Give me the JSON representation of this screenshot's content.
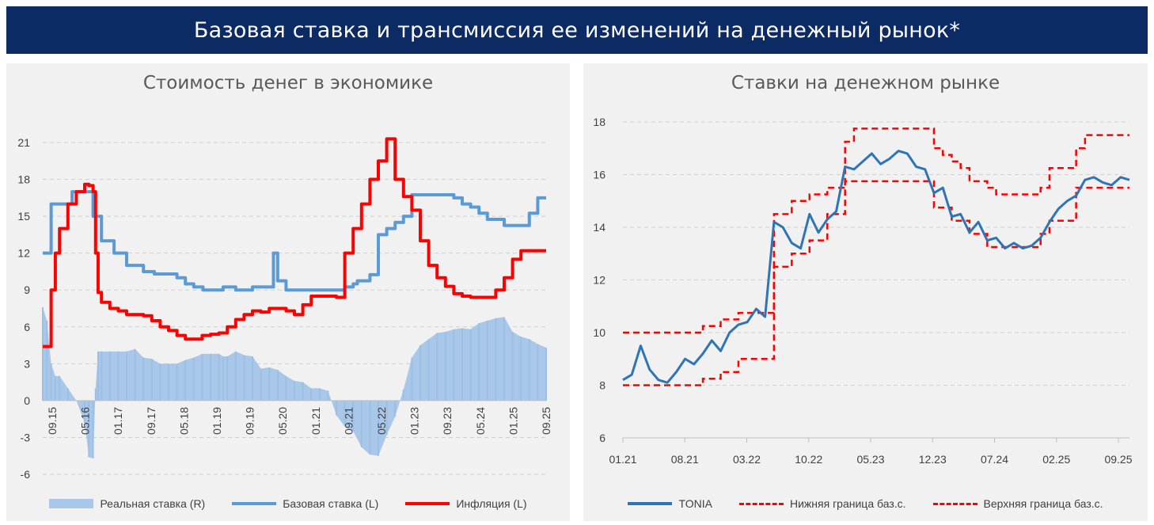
{
  "header": {
    "title": "Базовая ставка и трансмиссия ее изменений на денежный рынок*"
  },
  "chart_data": [
    {
      "type": "bar+line",
      "title": "Стоимость денег в экономике",
      "ylim": [
        -6,
        21
      ],
      "yticks": [
        "21",
        "18",
        "15",
        "12",
        "9",
        "6",
        "3",
        "0",
        "-3",
        "-6"
      ],
      "xticks": [
        "09.15",
        "05.16",
        "01.17",
        "09.17",
        "05.18",
        "01.19",
        "09.19",
        "05.20",
        "01.21",
        "09.21",
        "05.22",
        "01.23",
        "09.23",
        "05.24",
        "01.25",
        "09.25"
      ],
      "legend": [
        "Реальная ставка (R)",
        "Базовая ставка (L)",
        "Инфляция (L)"
      ],
      "colors": {
        "real": "#a9c7e8",
        "base": "#5b9bd5",
        "inflation": "#ff0000"
      },
      "series": [
        {
          "name": "Базовая ставка (L)",
          "x": [
            0,
            0.5,
            1,
            1.5,
            2,
            3,
            3.5,
            4,
            4.5,
            5,
            6,
            7,
            8,
            8.5,
            9,
            10,
            11,
            12,
            13,
            13.3,
            13.6,
            14,
            16,
            17,
            18,
            19,
            19.1,
            19.6,
            20,
            21,
            21.5,
            22,
            23,
            24,
            25,
            26,
            26.5,
            27,
            27.5,
            28,
            29,
            30,
            31,
            32,
            33,
            34,
            35,
            36,
            37,
            37.5,
            38,
            39,
            40,
            41,
            42,
            43,
            44,
            45,
            46,
            47,
            48,
            49,
            50,
            51,
            52,
            53,
            54,
            55,
            56,
            57,
            58,
            59,
            60
          ],
          "values": [
            12,
            12,
            16,
            16,
            16,
            16,
            17,
            17,
            17,
            17,
            15,
            13,
            13,
            12,
            12,
            11,
            11,
            10.5,
            10.5,
            10.3,
            10.3,
            10.3,
            10,
            9.5,
            9.25,
            9.25,
            9,
            9,
            9,
            9,
            9.25,
            9.25,
            9,
            9,
            9.25,
            9.25,
            9.25,
            9.25,
            12,
            9.75,
            9,
            9,
            9,
            9,
            9,
            9,
            9,
            9.25,
            9.5,
            9.75,
            9.75,
            10.25,
            13.5,
            14,
            14.5,
            15,
            16.75,
            16.75,
            16.75,
            16.75,
            16.75,
            16.5,
            16,
            15.75,
            15.25,
            14.75,
            14.75,
            14.25,
            14.25,
            14.25,
            15.25,
            16.5,
            16.5
          ]
        },
        {
          "name": "Инфляция (L)",
          "x": [
            0,
            0.5,
            1,
            1.5,
            2,
            3,
            4,
            5,
            5.5,
            6,
            6.3,
            6.6,
            7,
            8,
            9,
            10,
            11,
            12,
            13,
            14,
            15,
            16,
            17,
            18,
            19,
            20,
            21,
            22,
            23,
            24,
            25,
            26,
            27,
            28,
            29,
            30,
            31,
            32,
            33,
            34,
            35,
            36,
            37,
            38,
            39,
            40,
            41,
            42,
            43,
            44,
            45,
            46,
            47,
            48,
            49,
            50,
            51,
            52,
            53,
            54,
            55,
            56,
            57,
            58,
            59,
            60
          ],
          "values": [
            4.4,
            4.4,
            9,
            12,
            14,
            16,
            17,
            17.6,
            17.5,
            17,
            12,
            8.8,
            8,
            7.5,
            7.3,
            7,
            7,
            6.9,
            6.5,
            6,
            5.7,
            5.3,
            5,
            5,
            5.3,
            5.4,
            5.5,
            6,
            6.6,
            7,
            7.3,
            7.2,
            7.5,
            7.5,
            7.3,
            7,
            7.8,
            8.5,
            8.5,
            8.5,
            8.4,
            12,
            14,
            16,
            18,
            19.5,
            21.3,
            18,
            16.6,
            15.5,
            13,
            11,
            10,
            9.3,
            8.7,
            8.5,
            8.4,
            8.4,
            8.4,
            9,
            10,
            11.5,
            12.2,
            12.2,
            12.2,
            12.2
          ]
        },
        {
          "name": "Реальная ставка (R)",
          "x": [
            0,
            0.5,
            1,
            1.5,
            2,
            3,
            4,
            5,
            5.5,
            6,
            6.3,
            6.6,
            7,
            8,
            9,
            10,
            11,
            12,
            13,
            14,
            15,
            16,
            17,
            18,
            19,
            20,
            21,
            21.5,
            22,
            23,
            24,
            25,
            26,
            27,
            28,
            29,
            30,
            31,
            32,
            33,
            34,
            35,
            36,
            37,
            38,
            39,
            40,
            41,
            42,
            43,
            44,
            45,
            46,
            47,
            48,
            49,
            50,
            51,
            52,
            53,
            54,
            55,
            56,
            57,
            58,
            59,
            60
          ],
          "values": [
            7.6,
            6.5,
            3,
            2,
            2,
            1,
            0,
            -1.8,
            -4.6,
            -4.7,
            1,
            4,
            4,
            4,
            4,
            4,
            4.2,
            3.5,
            3.4,
            3,
            3,
            3,
            3.3,
            3.5,
            3.8,
            3.8,
            3.8,
            3.6,
            3.6,
            4,
            3.7,
            3.6,
            2.6,
            2.7,
            2.5,
            2,
            1.6,
            1.5,
            1,
            1,
            0.8,
            -1.2,
            -2.1,
            -2.5,
            -3.8,
            -4.4,
            -4.5,
            -2.8,
            -1.3,
            0.9,
            3.5,
            4.5,
            5,
            5.5,
            5.6,
            5.8,
            5.9,
            5.8,
            6.3,
            6.5,
            6.7,
            6.8,
            5.6,
            5.2,
            5,
            4.6,
            4.3
          ]
        }
      ]
    },
    {
      "type": "line",
      "title": "Ставки на денежном рынке",
      "ylim": [
        6,
        18
      ],
      "yticks": [
        "18",
        "16",
        "14",
        "12",
        "10",
        "8",
        "6"
      ],
      "xticks": [
        "01.21",
        "08.21",
        "03.22",
        "10.22",
        "05.23",
        "12.23",
        "07.24",
        "02.25",
        "09.25"
      ],
      "legend": [
        "TONIA",
        "Нижняя граница баз.с.",
        "Верхняя граница баз.с."
      ],
      "colors": {
        "tonia": "#2e75b6",
        "corridor": "#ff0000"
      },
      "series": [
        {
          "name": "Нижняя граница баз.с.",
          "x": [
            0,
            1,
            2,
            3,
            4,
            5,
            6,
            7,
            8,
            9,
            10,
            11,
            12,
            13,
            14,
            15,
            16,
            17,
            18,
            19,
            20,
            21,
            22,
            23,
            24,
            25,
            26,
            27,
            28,
            29,
            30,
            31,
            32,
            33,
            34,
            35,
            36,
            37,
            38,
            39,
            40,
            41,
            42,
            43,
            44,
            45,
            46,
            47,
            48,
            49,
            50,
            51,
            52,
            53,
            54,
            55,
            56,
            57
          ],
          "values": [
            8,
            8,
            8,
            8,
            8,
            8,
            8,
            8,
            8,
            8.25,
            8.25,
            8.5,
            8.5,
            9,
            9,
            9,
            9,
            12.5,
            12.5,
            13,
            13,
            13.5,
            13.5,
            14.5,
            14.5,
            15.75,
            15.75,
            15.75,
            15.75,
            15.75,
            15.75,
            15.75,
            15.75,
            15.75,
            15.75,
            14.75,
            14.75,
            14.25,
            14.25,
            13.75,
            13.75,
            13.25,
            13.25,
            13.25,
            13.25,
            13.25,
            13.25,
            13.75,
            14.25,
            14.25,
            14.25,
            15.5,
            15.5,
            15.5,
            15.5,
            15.5,
            15.5,
            15.5
          ]
        },
        {
          "name": "Верхняя граница баз.с.",
          "x": [
            0,
            1,
            2,
            3,
            4,
            5,
            6,
            7,
            8,
            9,
            10,
            11,
            12,
            13,
            14,
            15,
            16,
            17,
            18,
            19,
            20,
            21,
            22,
            23,
            24,
            25,
            26,
            27,
            28,
            29,
            30,
            31,
            32,
            33,
            34,
            35,
            36,
            37,
            38,
            39,
            40,
            41,
            42,
            43,
            44,
            45,
            46,
            47,
            48,
            49,
            50,
            51,
            52,
            53,
            54,
            55,
            56,
            57
          ],
          "values": [
            10,
            10,
            10,
            10,
            10,
            10,
            10,
            10,
            10,
            10.25,
            10.25,
            10.5,
            10.5,
            10.75,
            10.75,
            10.75,
            10.75,
            14.5,
            14.5,
            15,
            15,
            15.25,
            15.25,
            15.5,
            15.5,
            17.25,
            17.75,
            17.75,
            17.75,
            17.75,
            17.75,
            17.75,
            17.75,
            17.75,
            17.75,
            17,
            16.75,
            16.5,
            16.25,
            15.75,
            15.75,
            15.5,
            15.25,
            15.25,
            15.25,
            15.25,
            15.25,
            15.5,
            16.25,
            16.25,
            16.25,
            17,
            17.5,
            17.5,
            17.5,
            17.5,
            17.5,
            17.5
          ]
        },
        {
          "name": "TONIA",
          "x": [
            0,
            1,
            2,
            3,
            4,
            5,
            6,
            7,
            8,
            9,
            10,
            11,
            12,
            13,
            14,
            15,
            16,
            17,
            18,
            19,
            20,
            21,
            22,
            23,
            24,
            25,
            26,
            27,
            28,
            29,
            30,
            31,
            32,
            33,
            34,
            35,
            36,
            37,
            38,
            39,
            40,
            41,
            42,
            43,
            44,
            45,
            46,
            47,
            48,
            49,
            50,
            51,
            52,
            53,
            54,
            55,
            56,
            57
          ],
          "values": [
            8.2,
            8.4,
            9.5,
            8.6,
            8.2,
            8.1,
            8.5,
            9,
            8.8,
            9.2,
            9.7,
            9.3,
            10,
            10.3,
            10.4,
            10.9,
            10.6,
            14.2,
            14,
            13.4,
            13.2,
            14.5,
            13.8,
            14.3,
            14.6,
            16.3,
            16.2,
            16.5,
            16.8,
            16.4,
            16.6,
            16.9,
            16.8,
            16.3,
            16.2,
            15.3,
            15.5,
            14.4,
            14.5,
            13.8,
            14.2,
            13.5,
            13.6,
            13.2,
            13.4,
            13.2,
            13.3,
            13.6,
            14.2,
            14.7,
            15,
            15.2,
            15.8,
            15.9,
            15.7,
            15.6,
            15.9,
            15.8
          ]
        }
      ]
    }
  ]
}
